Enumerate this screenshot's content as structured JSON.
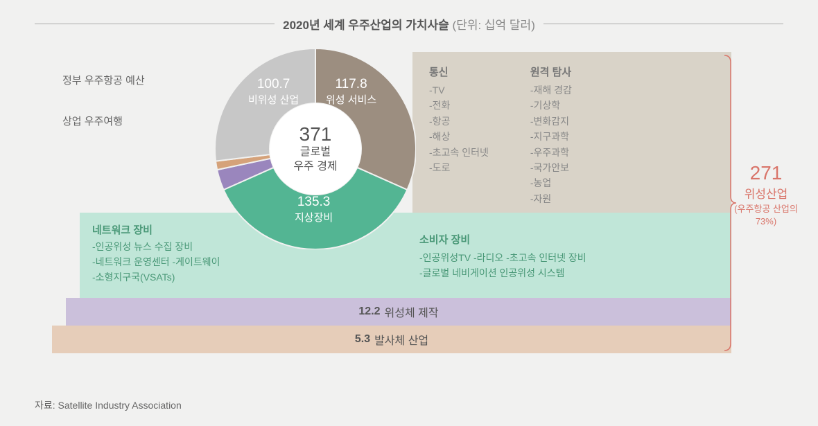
{
  "title": {
    "main": "2020년 세계 우주산업의 가치사슬",
    "unit": "(단위: 십억 달러)"
  },
  "donut": {
    "center_value": "371",
    "center_label_1": "글로벌",
    "center_label_2": "우주 경제",
    "slices": [
      {
        "value": "117.8",
        "label": "위성 서비스",
        "color": "#9c8e80",
        "start": 0,
        "end": 114
      },
      {
        "value": "135.3",
        "label": "지상장비",
        "color": "#53b593",
        "start": 114,
        "end": 246
      },
      {
        "value": "12.2",
        "label": "",
        "color": "#9a86bd",
        "start": 246,
        "end": 258
      },
      {
        "value": "5.3",
        "label": "",
        "color": "#d5a27a",
        "start": 258,
        "end": 263
      },
      {
        "value": "100.7",
        "label": "비위성 산업",
        "color": "#c7c7c7",
        "start": 263,
        "end": 360
      }
    ],
    "inner_radius": 66,
    "outer_radius": 145
  },
  "left_side": {
    "item1": "정부 우주항공 예산",
    "item2": "상업 우주여행"
  },
  "services_box": {
    "bg": "#d9d3c8",
    "col1_title": "통신",
    "col1_items": [
      "-TV",
      "-전화",
      "-항공",
      "-해상",
      "-초고속 인터넷",
      "-도로"
    ],
    "col2_title": "원격 탐사",
    "col2_items": [
      "-재해 경감",
      "-기상학",
      "-변화감지",
      "-지구과학",
      "-우주과학",
      "-국가안보",
      "-농업",
      "-자원"
    ]
  },
  "ground_box": {
    "bg": "#c0e6d8",
    "left_title": "네트워크 장비",
    "left_items": [
      "-인공위성 뉴스 수집 장비",
      "-네트워크 운영센터 -게이트웨이",
      "-소형지구국(VSATs)"
    ],
    "right_title": "소비자 장비",
    "right_items": [
      "-인공위성TV -라디오 -초고속 인터넷 장비",
      "-글로벌 네비게이션 인공위성 시스템"
    ]
  },
  "bars": {
    "mfg_value": "12.2",
    "mfg_label": "위성체 제작",
    "mfg_bg": "#cbc0db",
    "launch_value": "5.3",
    "launch_label": "발사체 산업",
    "launch_bg": "#e6cdb9"
  },
  "summary": {
    "value": "271",
    "label": "위성산업",
    "sub": "(우주항공 산업의 73%)",
    "color": "#d9756a"
  },
  "source": "자료: Satellite Industry Association"
}
